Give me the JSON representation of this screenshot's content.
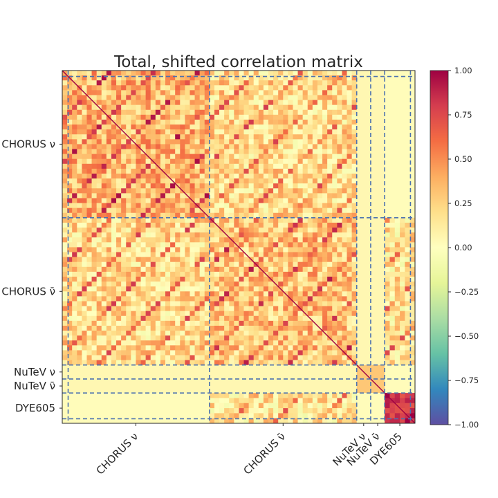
{
  "chart_data": {
    "type": "heatmap",
    "title": "Total, shifted correlation matrix",
    "blocks": [
      {
        "label": "CHORUS ν",
        "size": 505
      },
      {
        "label": "CHORUS ν̄",
        "size": 505
      },
      {
        "label": "NuTeV ν",
        "size": 48
      },
      {
        "label": "NuTeV ν̄",
        "size": 48
      },
      {
        "label": "DYE605",
        "size": 104
      }
    ],
    "y_tick_labels": [
      "CHORUS ν",
      "CHORUS ν̄",
      "NuTeV ν",
      "NuTeV ν̄",
      "DYE605"
    ],
    "x_tick_labels": [
      "CHORUS ν",
      "CHORUS ν̄",
      "NuTeV ν",
      "NuTeV ν̄",
      "DYE605"
    ],
    "block_mean_correlation": [
      [
        0.35,
        0.2,
        0.05,
        0.05,
        0.02
      ],
      [
        0.2,
        0.3,
        0.05,
        0.05,
        0.15
      ],
      [
        0.05,
        0.05,
        0.3,
        0.3,
        0.02
      ],
      [
        0.05,
        0.05,
        0.3,
        0.3,
        0.02
      ],
      [
        0.02,
        0.15,
        0.02,
        0.02,
        0.8
      ]
    ],
    "diagonal_value": 1.0,
    "colorbar": {
      "colormap": "Spectral_r",
      "range": [
        -1.0,
        1.0
      ],
      "ticks": [
        "1.00",
        "0.75",
        "0.50",
        "0.25",
        "0.00",
        "−0.25",
        "−0.50",
        "−0.75",
        "−1.00"
      ]
    },
    "block_separators": "dashed",
    "separator_color": "#4c72b0",
    "grid": false
  }
}
